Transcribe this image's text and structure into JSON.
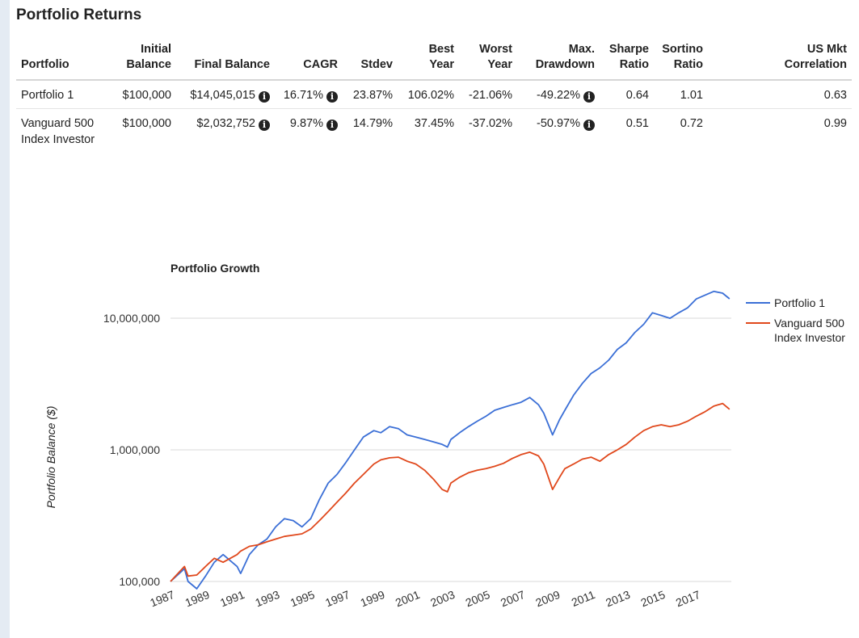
{
  "heading": "Portfolio Returns",
  "table": {
    "columns": [
      {
        "l1": "",
        "l2": "Portfolio"
      },
      {
        "l1": "Initial",
        "l2": "Balance"
      },
      {
        "l1": "",
        "l2": "Final Balance"
      },
      {
        "l1": "",
        "l2": "CAGR"
      },
      {
        "l1": "",
        "l2": "Stdev"
      },
      {
        "l1": "Best",
        "l2": "Year"
      },
      {
        "l1": "Worst",
        "l2": "Year"
      },
      {
        "l1": "Max.",
        "l2": "Drawdown"
      },
      {
        "l1": "Sharpe",
        "l2": "Ratio"
      },
      {
        "l1": "Sortino",
        "l2": "Ratio"
      },
      {
        "l1": "US Mkt",
        "l2": "Correlation"
      }
    ],
    "rows": [
      {
        "portfolio": "Portfolio 1",
        "initial_balance": "$100,000",
        "final_balance": "$14,045,015",
        "cagr": "16.71%",
        "stdev": "23.87%",
        "best_year": "106.02%",
        "worst_year": "-21.06%",
        "max_drawdown": "-49.22%",
        "sharpe": "0.64",
        "sortino": "1.01",
        "us_mkt_correlation": "0.63"
      },
      {
        "portfolio": "Vanguard 500 Index Investor",
        "initial_balance": "$100,000",
        "final_balance": "$2,032,752",
        "cagr": "9.87%",
        "stdev": "14.79%",
        "best_year": "37.45%",
        "worst_year": "-37.02%",
        "max_drawdown": "-50.97%",
        "sharpe": "0.51",
        "sortino": "0.72",
        "us_mkt_correlation": "0.99"
      }
    ],
    "info_icon": "info-circle-icon"
  },
  "chart_data": {
    "type": "line",
    "title": "Portfolio Growth",
    "xlabel": "",
    "ylabel": "Portfolio Balance ($)",
    "y_scale": "log",
    "ylim": [
      100000,
      20000000
    ],
    "xlim": [
      1987,
      2019
    ],
    "x_tick_labels": [
      "1987",
      "1989",
      "1991",
      "1993",
      "1995",
      "1997",
      "1999",
      "2001",
      "2003",
      "2005",
      "2007",
      "2009",
      "2011",
      "2013",
      "2015",
      "2017"
    ],
    "y_tick_labels": [
      "100,000",
      "1,000,000",
      "10,000,000"
    ],
    "y_tick_values": [
      100000,
      1000000,
      10000000
    ],
    "grid": true,
    "legend_position": "right",
    "x": [
      1987,
      1987.8,
      1988,
      1988.5,
      1989,
      1989.5,
      1990,
      1990.8,
      1991,
      1991.5,
      1992,
      1992.5,
      1993,
      1993.5,
      1994,
      1994.5,
      1995,
      1995.5,
      1996,
      1996.5,
      1997,
      1997.5,
      1998,
      1998.6,
      1999,
      1999.5,
      2000,
      2000.5,
      2001,
      2001.5,
      2002,
      2002.5,
      2002.8,
      2003,
      2003.5,
      2004,
      2004.5,
      2005,
      2005.5,
      2006,
      2006.5,
      2007,
      2007.5,
      2008,
      2008.3,
      2008.8,
      2009.2,
      2009.5,
      2010,
      2010.5,
      2011,
      2011.5,
      2012,
      2012.5,
      2013,
      2013.5,
      2014,
      2014.5,
      2015,
      2015.5,
      2016,
      2016.5,
      2017,
      2017.5,
      2018,
      2018.5,
      2018.9
    ],
    "series": [
      {
        "name": "Portfolio 1",
        "color": "#3b6fd6",
        "values": [
          100000,
          125000,
          100000,
          88000,
          110000,
          140000,
          160000,
          130000,
          115000,
          160000,
          190000,
          210000,
          260000,
          300000,
          290000,
          260000,
          300000,
          420000,
          560000,
          650000,
          800000,
          1000000,
          1250000,
          1400000,
          1350000,
          1500000,
          1450000,
          1300000,
          1250000,
          1200000,
          1150000,
          1100000,
          1050000,
          1200000,
          1350000,
          1500000,
          1650000,
          1800000,
          2000000,
          2100000,
          2200000,
          2300000,
          2500000,
          2200000,
          1900000,
          1300000,
          1700000,
          2000000,
          2600000,
          3200000,
          3800000,
          4200000,
          4800000,
          5800000,
          6500000,
          7800000,
          9000000,
          11000000,
          10500000,
          10000000,
          11000000,
          12000000,
          14000000,
          15000000,
          16000000,
          15500000,
          14045015
        ]
      },
      {
        "name": "Vanguard 500 Index Investor",
        "color": "#e0481c",
        "values": [
          100000,
          130000,
          110000,
          112000,
          130000,
          150000,
          140000,
          160000,
          170000,
          185000,
          190000,
          200000,
          210000,
          220000,
          225000,
          230000,
          250000,
          290000,
          340000,
          400000,
          470000,
          560000,
          650000,
          780000,
          840000,
          870000,
          880000,
          820000,
          780000,
          700000,
          600000,
          500000,
          480000,
          560000,
          620000,
          670000,
          700000,
          720000,
          750000,
          790000,
          860000,
          920000,
          960000,
          900000,
          780000,
          500000,
          620000,
          720000,
          780000,
          850000,
          880000,
          820000,
          920000,
          1000000,
          1100000,
          1250000,
          1400000,
          1500000,
          1550000,
          1500000,
          1550000,
          1650000,
          1800000,
          1950000,
          2150000,
          2250000,
          2032752
        ]
      }
    ]
  }
}
